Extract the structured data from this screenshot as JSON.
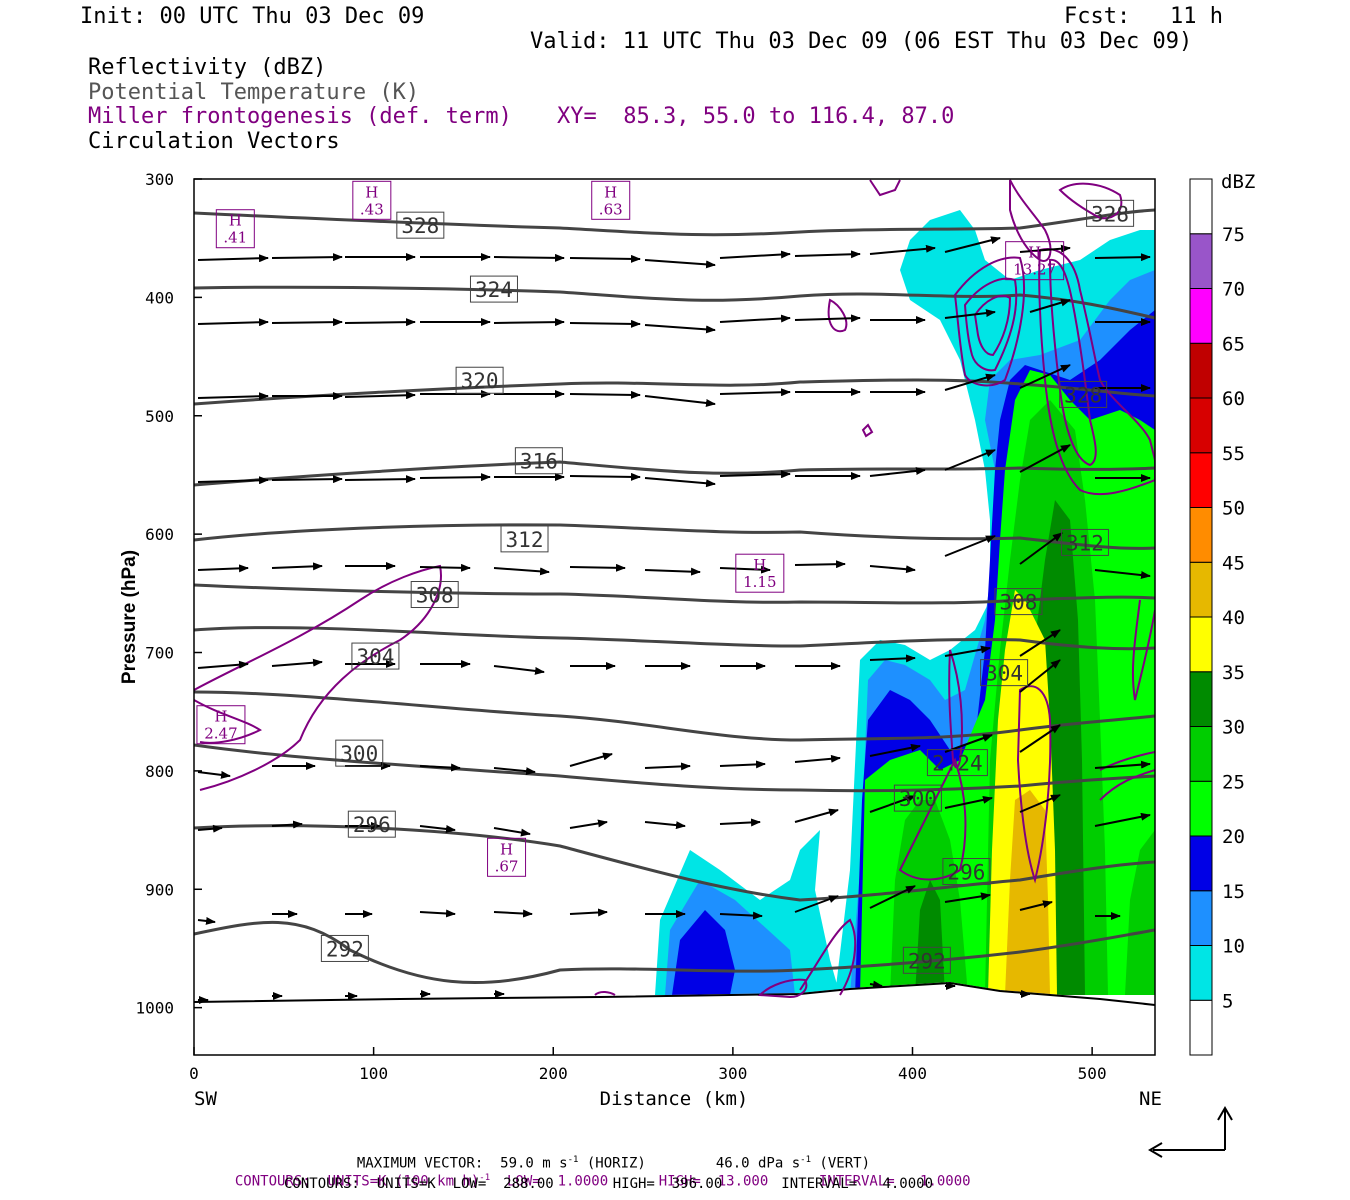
{
  "header": {
    "init": "Init: 00 UTC Thu 03 Dec 09",
    "fcst": "Fcst:   11 h",
    "valid": "Valid: 11 UTC Thu 03 Dec 09 (06 EST Thu 03 Dec 09)"
  },
  "fields": {
    "f1": "Reflectivity (dBZ)",
    "f2": "Potential Temperature (K)",
    "f3": "Miller frontogenesis (def. term)",
    "f4": "Circulation Vectors",
    "xy": "XY=  85.3, 55.0 to 116.4, 87.0"
  },
  "axes": {
    "ylabel": "Pressure (hPa)",
    "xlabel": "Distance (km)",
    "sw": "SW",
    "ne": "NE"
  },
  "footer": {
    "vec1": "MAXIMUM VECTOR:  59.0 m s",
    "vec1_sup": "-1",
    "vec1_b": " (HORIZ)",
    "vec2": "46.0 dPa s",
    "vec2_sup": "-1",
    "vec2_b": " (VERT)",
    "cont1a": "CONTOURS:  UNITS=K (100 km h)",
    "cont1sup": "-1",
    "cont1b": "  LOW=  1.0000      HIGH=  13.000      INTERVAL=   1.0000",
    "cont2": "CONTOURS:  UNITS=K  LOW=  288.00       HIGH=  396.00       INTERVAL=   4.0000"
  },
  "colorbar": {
    "title": "dBZ",
    "levels": [
      "5",
      "10",
      "15",
      "20",
      "25",
      "30",
      "35",
      "40",
      "45",
      "50",
      "55",
      "60",
      "65",
      "70",
      "75"
    ],
    "colors": [
      "#00e5e5",
      "#1e90ff",
      "#0000e6",
      "#00ff00",
      "#00cd00",
      "#008b00",
      "#ffff00",
      "#e6b800",
      "#ff8c00",
      "#ff0000",
      "#d70000",
      "#c00000",
      "#ff00ff",
      "#9955c9",
      "#ffffff"
    ]
  },
  "chart_data": {
    "type": "heatmap",
    "title": "Reflectivity (dBZ)",
    "xlabel": "Distance (km)",
    "ylabel": "Pressure (hPa)",
    "xlim": [
      0,
      535
    ],
    "ylim": [
      1040,
      300
    ],
    "x_ticks": [
      0,
      100,
      200,
      300,
      400,
      500
    ],
    "y_ticks": [
      300,
      400,
      500,
      600,
      700,
      800,
      900,
      1000
    ],
    "theta_labels": [
      {
        "value": "328",
        "x": 126,
        "p": 339
      },
      {
        "value": "324",
        "x": 167,
        "p": 393
      },
      {
        "value": "320",
        "x": 159,
        "p": 470
      },
      {
        "value": "316",
        "x": 192,
        "p": 538
      },
      {
        "value": "312",
        "x": 184,
        "p": 604
      },
      {
        "value": "308",
        "x": 134,
        "p": 651
      },
      {
        "value": "304",
        "x": 101,
        "p": 703
      },
      {
        "value": "300",
        "x": 92,
        "p": 785
      },
      {
        "value": "296",
        "x": 99,
        "p": 845
      },
      {
        "value": "292",
        "x": 84,
        "p": 950
      },
      {
        "value": "328",
        "x": 510,
        "p": 329
      },
      {
        "value": "312",
        "x": 496,
        "p": 607
      },
      {
        "value": "308",
        "x": 459,
        "p": 657
      },
      {
        "value": "304",
        "x": 451,
        "p": 717
      },
      {
        "value": "300",
        "x": 403,
        "p": 823
      },
      {
        "value": "296",
        "x": 430,
        "p": 885
      },
      {
        "value": "292",
        "x": 408,
        "p": 960
      },
      {
        "value": "328",
        "x": 495,
        "p": 482
      },
      {
        "value": "2.24",
        "x": 425,
        "p": 793
      }
    ],
    "frontogenesis_highs": [
      {
        "label": "H",
        "value": ".41",
        "x": 23,
        "p": 342
      },
      {
        "label": "H",
        "value": ".43",
        "x": 99,
        "p": 318
      },
      {
        "label": "H",
        "value": ".63",
        "x": 232,
        "p": 318
      },
      {
        "label": "H",
        "value": "13.27",
        "x": 468,
        "p": 369
      },
      {
        "label": "H",
        "value": "1.15",
        "x": 315,
        "p": 633
      },
      {
        "label": "H",
        "value": "2.47",
        "x": 15,
        "p": 761
      },
      {
        "label": "H",
        "value": ".67",
        "x": 174,
        "p": 873
      }
    ]
  }
}
